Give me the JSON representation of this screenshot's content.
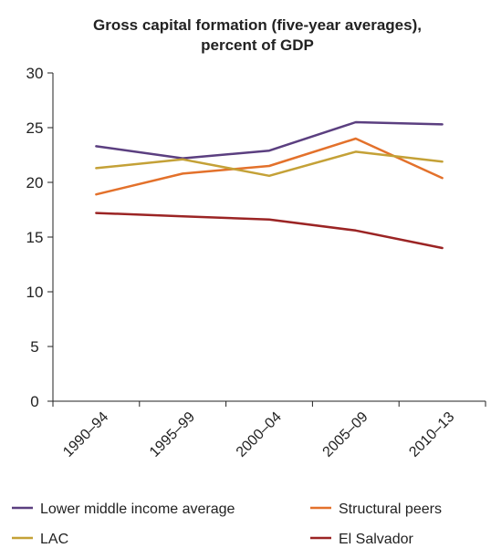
{
  "chart_data": {
    "type": "line",
    "title_lines": [
      "Gross capital formation (five-year averages),",
      "percent of GDP"
    ],
    "categories": [
      "1990–94",
      "1995–99",
      "2000–04",
      "2005–09",
      "2010–13"
    ],
    "ylim": [
      0,
      30
    ],
    "yticks": [
      0,
      5,
      10,
      15,
      20,
      25,
      30
    ],
    "grid": false,
    "legend_position": "bottom",
    "series": [
      {
        "name": "Lower middle income average",
        "color": "#5b3f80",
        "values": [
          23.3,
          22.2,
          22.9,
          25.5,
          25.3
        ]
      },
      {
        "name": "Structural peers",
        "color": "#e3712b",
        "values": [
          18.9,
          20.8,
          21.5,
          24.0,
          20.4
        ]
      },
      {
        "name": "LAC",
        "color": "#c4a137",
        "values": [
          21.3,
          22.1,
          20.6,
          22.8,
          21.9
        ]
      },
      {
        "name": "El Salvador",
        "color": "#9b2424",
        "values": [
          17.2,
          16.9,
          16.6,
          15.6,
          14.0
        ]
      }
    ]
  }
}
